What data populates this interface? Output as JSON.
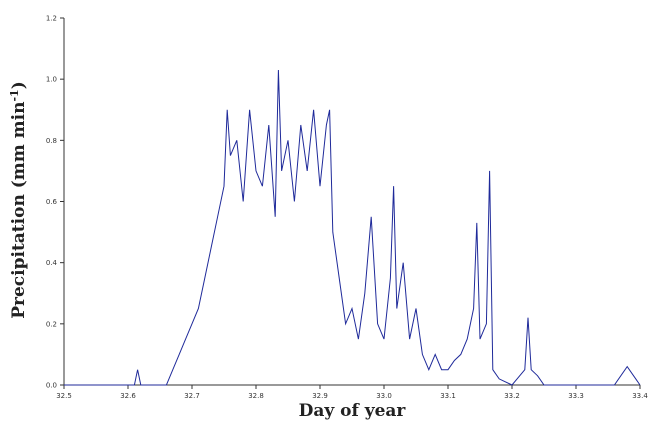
{
  "chart_data": {
    "type": "line",
    "title": "",
    "xlabel": "Day of year",
    "ylabel_main": "Precipitation (mm min",
    "ylabel_sup": "-1",
    "ylabel_close": ")",
    "xlim": [
      32.5,
      33.4
    ],
    "ylim": [
      0.0,
      1.2
    ],
    "x_ticks": [
      32.5,
      32.6,
      32.7,
      32.8,
      32.9,
      33.0,
      33.1,
      33.2,
      33.3,
      33.4
    ],
    "x_tick_labels": [
      "32.5",
      "32.6",
      "32.7",
      "32.8",
      "32.9",
      "33.0",
      "33.1",
      "33.2",
      "33.3",
      "33.4"
    ],
    "y_ticks": [
      0.0,
      0.2,
      0.4,
      0.6,
      0.8,
      1.0,
      1.2
    ],
    "y_tick_labels": [
      "0.0",
      "0.2",
      "0.4",
      "0.6",
      "0.8",
      "1.0",
      "1.2"
    ],
    "grid": false,
    "line_color": "#1f2a9a",
    "series": [
      {
        "x": [
          32.5,
          32.61,
          32.615,
          32.62,
          32.66,
          32.67,
          32.68,
          32.69,
          32.7,
          32.71,
          32.72,
          32.73,
          32.74,
          32.75,
          32.755,
          32.76,
          32.77,
          32.78,
          32.79,
          32.8,
          32.81,
          32.82,
          32.83,
          32.835,
          32.84,
          32.85,
          32.86,
          32.87,
          32.88,
          32.89,
          32.9,
          32.91,
          32.915,
          32.92,
          32.93,
          32.94,
          32.95,
          32.96,
          32.97,
          32.98,
          32.99,
          33.0,
          33.01,
          33.015,
          33.02,
          33.03,
          33.04,
          33.05,
          33.06,
          33.07,
          33.08,
          33.09,
          33.1,
          33.11,
          33.12,
          33.13,
          33.14,
          33.145,
          33.15,
          33.16,
          33.165,
          33.17,
          33.18,
          33.2,
          33.22,
          33.225,
          33.23,
          33.24,
          33.25,
          33.3,
          33.36,
          33.38,
          33.39,
          33.4
        ],
        "y": [
          0.0,
          0.0,
          0.05,
          0.0,
          0.0,
          0.05,
          0.1,
          0.15,
          0.2,
          0.25,
          0.35,
          0.45,
          0.55,
          0.65,
          0.9,
          0.75,
          0.8,
          0.6,
          0.9,
          0.7,
          0.65,
          0.85,
          0.55,
          1.03,
          0.7,
          0.8,
          0.6,
          0.85,
          0.7,
          0.9,
          0.65,
          0.85,
          0.9,
          0.5,
          0.35,
          0.2,
          0.25,
          0.15,
          0.3,
          0.55,
          0.2,
          0.15,
          0.35,
          0.65,
          0.25,
          0.4,
          0.15,
          0.25,
          0.1,
          0.05,
          0.1,
          0.05,
          0.05,
          0.08,
          0.1,
          0.15,
          0.25,
          0.53,
          0.15,
          0.2,
          0.7,
          0.05,
          0.02,
          0.0,
          0.05,
          0.22,
          0.05,
          0.03,
          0.0,
          0.0,
          0.0,
          0.06,
          0.03,
          0.0
        ]
      }
    ]
  }
}
